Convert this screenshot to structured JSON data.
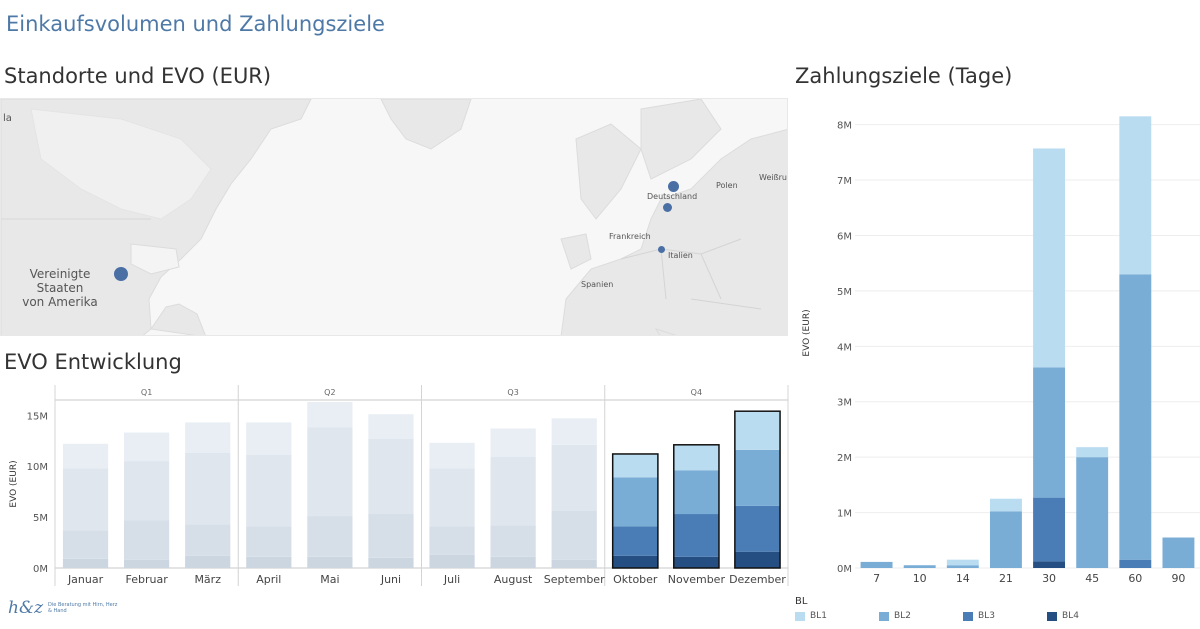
{
  "dashboard_title": "Einkaufsvolumen und Zahlungsziele",
  "map": {
    "title": "Standorte und EVO (EUR)",
    "labels": {
      "la": "la",
      "usa": "Vereinigte\nStaaten\nvon Amerika",
      "polen": "Polen",
      "weissrussland": "Weißruss",
      "deutschland": "Deutschland",
      "frankreich": "Frankreich",
      "italien": "Italien",
      "spanien": "Spanien"
    }
  },
  "evo": {
    "title": "EVO Entwicklung",
    "ylabel": "EVO (EUR)",
    "yticks": [
      "15M",
      "10M",
      "5M",
      "0M"
    ]
  },
  "pay": {
    "title": "Zahlungsziele (Tage)",
    "ylabel": "EVO (EUR)"
  },
  "legend": {
    "title": "BL",
    "items": [
      {
        "label": "BL1",
        "color": "#b9dcf0"
      },
      {
        "label": "BL2",
        "color": "#7aadd6"
      },
      {
        "label": "BL3",
        "color": "#4a7db5"
      },
      {
        "label": "BL4",
        "color": "#254f82"
      }
    ]
  },
  "logo": {
    "mark": "h&z",
    "tagline": "Die Beratung mit Hirn, Herz & Hand"
  },
  "chart_data": [
    {
      "type": "bar",
      "title": "EVO Entwicklung",
      "ylabel": "EVO (EUR)",
      "ylim": [
        0,
        16500000
      ],
      "stacked": true,
      "quarters": [
        "Q1",
        "Q2",
        "Q3",
        "Q4"
      ],
      "categories": [
        "Januar",
        "Februar",
        "März",
        "April",
        "Mai",
        "Juni",
        "Juli",
        "August",
        "September",
        "Oktober",
        "November",
        "Dezember"
      ],
      "quarter_index": [
        0,
        0,
        0,
        1,
        1,
        1,
        2,
        2,
        2,
        3,
        3,
        3
      ],
      "highlighted": [
        false,
        false,
        false,
        false,
        false,
        false,
        false,
        false,
        false,
        true,
        true,
        true
      ],
      "series": [
        {
          "name": "BL4",
          "values": [
            900000,
            800000,
            1200000,
            1100000,
            1100000,
            1000000,
            1300000,
            1100000,
            800000,
            1200000,
            1100000,
            1600000
          ]
        },
        {
          "name": "BL3",
          "values": [
            2800000,
            3900000,
            3100000,
            3000000,
            4000000,
            4300000,
            2800000,
            3100000,
            4800000,
            2900000,
            4200000,
            4500000
          ]
        },
        {
          "name": "BL2",
          "values": [
            6100000,
            5800000,
            7000000,
            7000000,
            8700000,
            7400000,
            5700000,
            6700000,
            6500000,
            4800000,
            4300000,
            5500000
          ]
        },
        {
          "name": "BL1",
          "values": [
            2400000,
            2800000,
            3000000,
            3200000,
            2500000,
            2400000,
            2500000,
            2800000,
            2600000,
            2300000,
            2500000,
            3800000
          ]
        }
      ]
    },
    {
      "type": "bar",
      "title": "Zahlungsziele (Tage)",
      "ylabel": "EVO (EUR)",
      "ylim": [
        0,
        8300000
      ],
      "yticks": [
        0,
        1000000,
        2000000,
        3000000,
        4000000,
        5000000,
        6000000,
        7000000,
        8000000
      ],
      "ytick_labels": [
        "0M",
        "1M",
        "2M",
        "3M",
        "4M",
        "5M",
        "6M",
        "7M",
        "8M"
      ],
      "stacked": true,
      "categories": [
        "7",
        "10",
        "14",
        "21",
        "30",
        "45",
        "60",
        "90"
      ],
      "series": [
        {
          "name": "BL4",
          "values": [
            0,
            0,
            0,
            0,
            120000,
            0,
            0,
            0
          ]
        },
        {
          "name": "BL3",
          "values": [
            0,
            0,
            0,
            0,
            1150000,
            0,
            150000,
            0
          ]
        },
        {
          "name": "BL2",
          "values": [
            110000,
            50000,
            50000,
            1020000,
            2350000,
            2000000,
            5150000,
            550000
          ]
        },
        {
          "name": "BL1",
          "values": [
            0,
            0,
            100000,
            230000,
            3950000,
            180000,
            2850000,
            0
          ]
        }
      ]
    }
  ]
}
